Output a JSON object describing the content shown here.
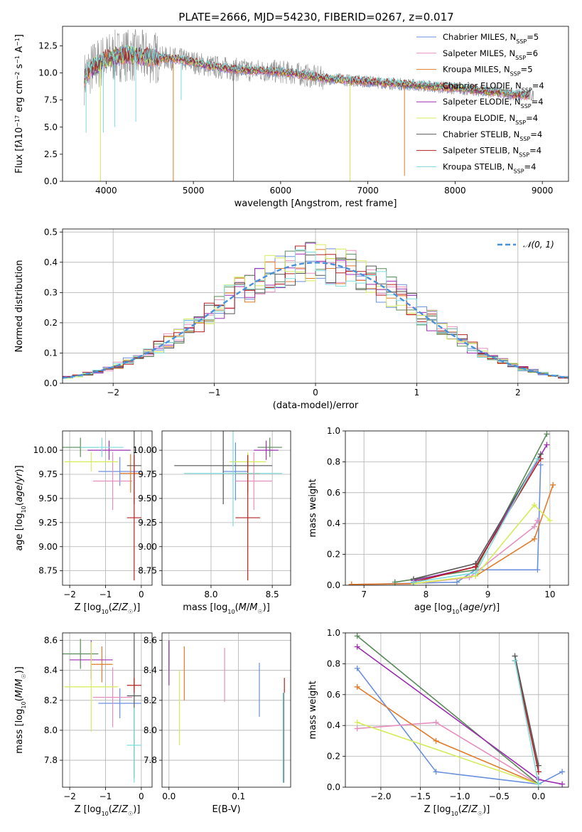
{
  "figure_title": "PLATE=2666, MJD=54230, FIBERID=0267, z=0.017",
  "colors": {
    "Chabrier MILES": "#6a8fdc",
    "Salpeter MILES": "#e58fbf",
    "Kroupa MILES": "#e07b2a",
    "Chabrier ELODIE": "#5a8a5a",
    "Salpeter ELODIE": "#9b2fb0",
    "Kroupa ELODIE": "#d4ec5a",
    "Chabrier STELIB": "#555555",
    "Salpeter STELIB": "#b52020",
    "Kroupa STELIB": "#7edcdc",
    "gaussian": "#4a90d9"
  },
  "chart_data": [
    {
      "id": "spectrum",
      "type": "line",
      "title": "PLATE=2666, MJD=54230, FIBERID=0267, z=0.017",
      "xlabel": "wavelength [Angstrom, rest frame]",
      "ylabel_html": "Flux [f<tspan font-style='italic'>λ</tspan>10<tspan baseline-shift='super' font-size='8'>−17</tspan> erg cm<tspan baseline-shift='super' font-size='8'>−2</tspan> s<tspan baseline-shift='super' font-size='8'>−1</tspan> A<tspan baseline-shift='super' font-size='8'>−1</tspan>]",
      "xlim": [
        3500,
        9300
      ],
      "ylim": [
        0,
        14.3
      ],
      "xticks": [
        4000,
        5000,
        6000,
        7000,
        8000,
        9000
      ],
      "yticks": [
        0.0,
        2.5,
        5.0,
        7.5,
        10.0,
        12.5
      ],
      "legend": [
        {
          "name": "Chabrier MILES",
          "nssp": "5"
        },
        {
          "name": "Salpeter MILES",
          "nssp": "6"
        },
        {
          "name": "Kroupa MILES",
          "nssp": "5"
        },
        {
          "name": "Chabrier ELODIE",
          "nssp": "4"
        },
        {
          "name": "Salpeter ELODIE",
          "nssp": "4"
        },
        {
          "name": "Kroupa ELODIE",
          "nssp": "4"
        },
        {
          "name": "Chabrier STELIB",
          "nssp": "4"
        },
        {
          "name": "Salpeter STELIB",
          "nssp": "4"
        },
        {
          "name": "Kroupa STELIB",
          "nssp": "4"
        }
      ],
      "continuum": [
        [
          3750,
          9.5
        ],
        [
          3800,
          10.2
        ],
        [
          3900,
          10.8
        ],
        [
          4000,
          11.3
        ],
        [
          4200,
          11.7
        ],
        [
          4400,
          11.5
        ],
        [
          4600,
          11.4
        ],
        [
          4800,
          11.3
        ],
        [
          5000,
          11.0
        ],
        [
          5200,
          10.6
        ],
        [
          5500,
          10.3
        ],
        [
          5800,
          10.2
        ],
        [
          6000,
          10.1
        ],
        [
          6200,
          9.9
        ],
        [
          6500,
          9.5
        ],
        [
          7000,
          9.2
        ],
        [
          7500,
          8.9
        ],
        [
          8000,
          8.6
        ],
        [
          8500,
          8.2
        ],
        [
          8800,
          7.9
        ]
      ],
      "spikes": [
        [
          3935,
          0.0
        ],
        [
          4770,
          0.0
        ],
        [
          5460,
          0.0
        ],
        [
          6795,
          0.0
        ],
        [
          7420,
          0.5
        ],
        [
          4100,
          5.0
        ],
        [
          4340,
          5.5
        ],
        [
          4860,
          7.5
        ],
        [
          3968,
          4.5
        ],
        [
          3770,
          4.5
        ]
      ]
    },
    {
      "id": "residuals",
      "type": "bar",
      "xlabel": "(data-model)/error",
      "ylabel": "Normed distribution",
      "xlim": [
        -2.5,
        2.5
      ],
      "ylim": [
        0,
        0.51
      ],
      "xticks": [
        -2,
        -1,
        0,
        1,
        2
      ],
      "yticks": [
        0.0,
        0.1,
        0.2,
        0.3,
        0.4,
        0.5
      ],
      "legend": "𝒩(0, 1)",
      "bin_width": 0.1
    },
    {
      "id": "age-vs-Z",
      "type": "scatter",
      "xlabel_html": "Z [log<tspan baseline-shift='sub' font-size='8'>10</tspan>(<tspan font-style='italic'>Z</tspan>/<tspan font-style='italic'>Z</tspan><tspan baseline-shift='sub' font-size='8'>☉</tspan>)]",
      "ylabel_html": "age  [log<tspan baseline-shift='sub' font-size='8'>10</tspan>(<tspan font-style='italic'>age</tspan>/<tspan font-style='italic'>yr</tspan>)]",
      "xlim": [
        -2.2,
        0.3
      ],
      "ylim": [
        8.6,
        10.2
      ],
      "xticks": [
        -2,
        -1,
        0
      ],
      "yticks": [
        8.75,
        9.0,
        9.25,
        9.5,
        9.75,
        10.0
      ],
      "points": [
        {
          "s": "Chabrier MILES",
          "x": -0.6,
          "y": 9.78,
          "xe": 0.6,
          "ye": 0.15
        },
        {
          "s": "Salpeter MILES",
          "x": -0.8,
          "y": 9.68,
          "xe": 0.55,
          "ye": 0.3
        },
        {
          "s": "Kroupa MILES",
          "x": -0.3,
          "y": 9.76,
          "xe": 0.3,
          "ye": 0.2
        },
        {
          "s": "Chabrier ELODIE",
          "x": -1.7,
          "y": 10.03,
          "xe": 0.5,
          "ye": 0.1
        },
        {
          "s": "Salpeter ELODIE",
          "x": -0.9,
          "y": 10.0,
          "xe": 0.6,
          "ye": 0.1
        },
        {
          "s": "Kroupa ELODIE",
          "x": -1.4,
          "y": 9.88,
          "xe": 0.75,
          "ye": 0.1
        },
        {
          "s": "Chabrier STELIB",
          "x": -0.2,
          "y": 9.84,
          "xe": 0.2,
          "ye": 0.4
        },
        {
          "s": "Salpeter STELIB",
          "x": -0.2,
          "y": 9.3,
          "xe": 0.2,
          "ye": 0.65
        },
        {
          "s": "Kroupa STELIB",
          "x": -1.1,
          "y": 10.03,
          "xe": 0.6,
          "ye": 0.1
        }
      ]
    },
    {
      "id": "age-vs-mass",
      "type": "scatter",
      "xlabel_html": "mass [log<tspan baseline-shift='sub' font-size='8'>10</tspan>(<tspan font-style='italic'>M</tspan>/<tspan font-style='italic'>M</tspan><tspan baseline-shift='sub' font-size='8'>☉</tspan>)]",
      "xlim": [
        7.6,
        8.65
      ],
      "ylim": [
        8.6,
        10.2
      ],
      "xticks": [
        8.0,
        8.5
      ],
      "yticks": [
        8.75,
        9.0,
        9.25,
        9.5,
        9.75,
        10.0
      ],
      "points": [
        {
          "s": "Chabrier MILES",
          "x": 8.2,
          "y": 9.78,
          "xe": 0.1,
          "ye": 0.3
        },
        {
          "s": "Salpeter MILES",
          "x": 8.35,
          "y": 9.68,
          "xe": 0.15,
          "ye": 0.3
        },
        {
          "s": "Kroupa MILES",
          "x": 8.3,
          "y": 9.76,
          "xe": 0.1,
          "ye": 0.2
        },
        {
          "s": "Chabrier ELODIE",
          "x": 8.48,
          "y": 10.03,
          "xe": 0.1,
          "ye": 0.1
        },
        {
          "s": "Salpeter ELODIE",
          "x": 8.45,
          "y": 10.0,
          "xe": 0.1,
          "ye": 0.1
        },
        {
          "s": "Kroupa ELODIE",
          "x": 8.3,
          "y": 9.88,
          "xe": 0.15,
          "ye": 0.1
        },
        {
          "s": "Chabrier STELIB",
          "x": 8.1,
          "y": 9.84,
          "xe": 0.4,
          "ye": 0.4
        },
        {
          "s": "Salpeter STELIB",
          "x": 8.3,
          "y": 9.3,
          "xe": 0.1,
          "ye": 0.65
        },
        {
          "s": "Kroupa STELIB",
          "x": 8.18,
          "y": 9.76,
          "xe": 0.4,
          "ye": 0.55
        }
      ]
    },
    {
      "id": "mass-weight-vs-age",
      "type": "line",
      "xlabel_html": "age  [log<tspan baseline-shift='sub' font-size='8'>10</tspan>(<tspan font-style='italic'>age</tspan>/<tspan font-style='italic'>yr</tspan>)]",
      "ylabel": "mass weight",
      "xlim": [
        6.7,
        10.3
      ],
      "ylim": [
        0,
        1.0
      ],
      "xticks": [
        7,
        8,
        9,
        10
      ],
      "yticks": [
        0.0,
        0.2,
        0.4,
        0.6,
        0.8,
        1.0
      ],
      "series": [
        {
          "s": "Chabrier MILES",
          "x": [
            6.8,
            7.5,
            8.5,
            8.8,
            9.8,
            9.85
          ],
          "y": [
            0.005,
            0.01,
            0.02,
            0.1,
            0.1,
            0.78
          ]
        },
        {
          "s": "Salpeter MILES",
          "x": [
            6.8,
            7.8,
            8.7,
            9.75,
            9.8
          ],
          "y": [
            0.005,
            0.01,
            0.05,
            0.38,
            0.42
          ]
        },
        {
          "s": "Kroupa MILES",
          "x": [
            6.8,
            7.8,
            8.8,
            9.75,
            10.05
          ],
          "y": [
            0.005,
            0.01,
            0.06,
            0.3,
            0.65
          ]
        },
        {
          "s": "Chabrier ELODIE",
          "x": [
            7.5,
            8.8,
            9.95
          ],
          "y": [
            0.02,
            0.1,
            0.98
          ]
        },
        {
          "s": "Salpeter ELODIE",
          "x": [
            7.8,
            8.8,
            9.95
          ],
          "y": [
            0.03,
            0.12,
            0.91
          ]
        },
        {
          "s": "Kroupa ELODIE",
          "x": [
            7.8,
            8.8,
            9.75,
            10.0
          ],
          "y": [
            0.01,
            0.06,
            0.52,
            0.42
          ]
        },
        {
          "s": "Chabrier STELIB",
          "x": [
            7.8,
            8.8,
            9.85
          ],
          "y": [
            0.04,
            0.14,
            0.85
          ]
        },
        {
          "s": "Salpeter STELIB",
          "x": [
            7.8,
            8.8,
            9.85
          ],
          "y": [
            0.02,
            0.12,
            0.82
          ]
        },
        {
          "s": "Kroupa STELIB",
          "x": [
            7.8,
            8.8,
            9.8
          ],
          "y": [
            0.02,
            0.08,
            0.82
          ]
        }
      ]
    },
    {
      "id": "mass-vs-Z",
      "type": "scatter",
      "xlabel_html": "Z [log<tspan baseline-shift='sub' font-size='8'>10</tspan>(<tspan font-style='italic'>Z</tspan>/<tspan font-style='italic'>Z</tspan><tspan baseline-shift='sub' font-size='8'>☉</tspan>)]",
      "ylabel_html": "mass [log<tspan baseline-shift='sub' font-size='8'>10</tspan>(<tspan font-style='italic'>M</tspan>/<tspan font-style='italic'>M</tspan><tspan baseline-shift='sub' font-size='8'>☉</tspan>)]",
      "xlim": [
        -2.2,
        0.3
      ],
      "ylim": [
        7.62,
        8.65
      ],
      "xticks": [
        -2,
        -1,
        0
      ],
      "yticks": [
        7.8,
        8.0,
        8.2,
        8.4,
        8.6
      ],
      "points": [
        {
          "s": "Chabrier MILES",
          "x": -0.6,
          "y": 8.18,
          "xe": 0.6,
          "ye": 0.1
        },
        {
          "s": "Salpeter MILES",
          "x": -0.8,
          "y": 8.22,
          "xe": 0.55,
          "ye": 0.2
        },
        {
          "s": "Kroupa MILES",
          "x": -1.1,
          "y": 8.44,
          "xe": 0.3,
          "ye": 0.12
        },
        {
          "s": "Chabrier ELODIE",
          "x": -1.7,
          "y": 8.51,
          "xe": 0.5,
          "ye": 0.1
        },
        {
          "s": "Salpeter ELODIE",
          "x": -1.4,
          "y": 8.47,
          "xe": 0.6,
          "ye": 0.13
        },
        {
          "s": "Kroupa ELODIE",
          "x": -1.4,
          "y": 8.29,
          "xe": 0.75,
          "ye": 0.3
        },
        {
          "s": "Chabrier STELIB",
          "x": -0.2,
          "y": 8.23,
          "xe": 0.2,
          "ye": 0.55
        },
        {
          "s": "Salpeter STELIB",
          "x": -0.2,
          "y": 8.3,
          "xe": 0.2,
          "ye": 0.05
        },
        {
          "s": "Kroupa STELIB",
          "x": -0.2,
          "y": 7.9,
          "xe": 0.2,
          "ye": 0.25
        }
      ]
    },
    {
      "id": "mass-vs-ebv",
      "type": "scatter",
      "xlabel": "E(B-V)",
      "xlim": [
        -0.01,
        0.175
      ],
      "ylim": [
        7.62,
        8.65
      ],
      "xticks": [
        0.0,
        0.1
      ],
      "yticks": [
        7.8,
        8.0,
        8.2,
        8.4,
        8.6
      ],
      "points": [
        {
          "s": "Chabrier MILES",
          "x": 0.13,
          "y": 8.27,
          "ye": 0.18
        },
        {
          "s": "Salpeter MILES",
          "x": 0.08,
          "y": 8.37,
          "ye": 0.18
        },
        {
          "s": "Kroupa MILES",
          "x": 0.022,
          "y": 8.38,
          "ye": 0.18
        },
        {
          "s": "Chabrier ELODIE",
          "x": 0.0,
          "y": 8.5,
          "ye": 0.1
        },
        {
          "s": "Salpeter ELODIE",
          "x": 0.0,
          "y": 8.45,
          "ye": 0.15
        },
        {
          "s": "Kroupa ELODIE",
          "x": 0.015,
          "y": 8.15,
          "ye": 0.25
        },
        {
          "s": "Chabrier STELIB",
          "x": 0.165,
          "y": 7.95,
          "ye": 0.3
        },
        {
          "s": "Salpeter STELIB",
          "x": 0.166,
          "y": 8.3,
          "ye": 0.05
        },
        {
          "s": "Kroupa STELIB",
          "x": 0.164,
          "y": 7.95,
          "ye": 0.3
        }
      ]
    },
    {
      "id": "mass-weight-vs-Z",
      "type": "line",
      "xlabel_html": "Z [log<tspan baseline-shift='sub' font-size='8'>10</tspan>(<tspan font-style='italic'>Z</tspan>/<tspan font-style='italic'>Z</tspan><tspan baseline-shift='sub' font-size='8'>☉</tspan>)]",
      "ylabel": "mass weight",
      "xlim": [
        -2.45,
        0.38
      ],
      "ylim": [
        0,
        1.0
      ],
      "xticks": [
        -2.0,
        -1.5,
        -1.0,
        -0.5,
        0.0
      ],
      "yticks": [
        0.0,
        0.2,
        0.4,
        0.6,
        0.8,
        1.0
      ],
      "series": [
        {
          "s": "Chabrier MILES",
          "x": [
            -2.3,
            -1.3,
            0.0,
            0.3
          ],
          "y": [
            0.77,
            0.1,
            0.02,
            0.1
          ]
        },
        {
          "s": "Salpeter MILES",
          "x": [
            -2.3,
            -1.3,
            0.0
          ],
          "y": [
            0.38,
            0.42,
            0.02
          ]
        },
        {
          "s": "Kroupa MILES",
          "x": [
            -2.3,
            -1.3,
            0.0
          ],
          "y": [
            0.65,
            0.3,
            0.02
          ]
        },
        {
          "s": "Chabrier ELODIE",
          "x": [
            -2.3,
            0.0
          ],
          "y": [
            0.98,
            0.02
          ]
        },
        {
          "s": "Salpeter ELODIE",
          "x": [
            -2.3,
            0.0,
            0.3
          ],
          "y": [
            0.91,
            0.05,
            0.02
          ]
        },
        {
          "s": "Kroupa ELODIE",
          "x": [
            -2.3,
            0.0
          ],
          "y": [
            0.42,
            0.02
          ]
        },
        {
          "s": "Chabrier STELIB",
          "x": [
            -0.3,
            0.0
          ],
          "y": [
            0.85,
            0.14
          ]
        },
        {
          "s": "Salpeter STELIB",
          "x": [
            -0.3,
            0.0
          ],
          "y": [
            0.82,
            0.1
          ]
        },
        {
          "s": "Kroupa STELIB",
          "x": [
            -0.3,
            0.0
          ],
          "y": [
            0.82,
            0.02
          ]
        }
      ]
    }
  ]
}
